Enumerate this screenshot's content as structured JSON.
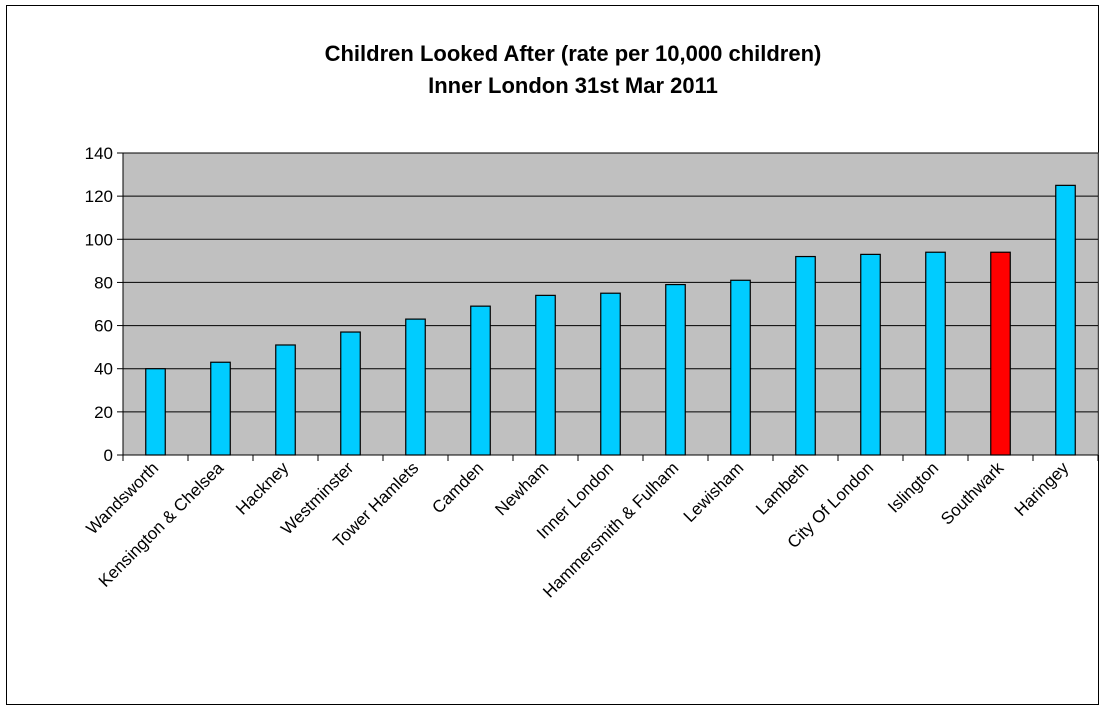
{
  "chart_data": {
    "type": "bar",
    "title": "Children Looked After (rate per 10,000 children)",
    "subtitle": "Inner London 31st Mar 2011",
    "xlabel": "",
    "ylabel": "",
    "ylim": [
      0,
      140
    ],
    "yticks": [
      0,
      20,
      40,
      60,
      80,
      100,
      120,
      140
    ],
    "grid": true,
    "legend": "none",
    "colors": {
      "bar": "#00ccff",
      "highlight": "#ff0000",
      "plot_background": "#c0c0c0",
      "bar_outline": "#000000"
    },
    "highlight_category": "Southwark",
    "categories": [
      "Wandsworth",
      "Kensington & Chelsea",
      "Hackney",
      "Westminster",
      "Tower Hamlets",
      "Camden",
      "Newham",
      "Inner London",
      "Hammersmith & Fulham",
      "Lewisham",
      "Lambeth",
      "City Of London",
      "Islington",
      "Southwark",
      "Haringey"
    ],
    "values": [
      40,
      43,
      51,
      57,
      63,
      69,
      74,
      75,
      79,
      81,
      92,
      93,
      94,
      94,
      125
    ]
  }
}
